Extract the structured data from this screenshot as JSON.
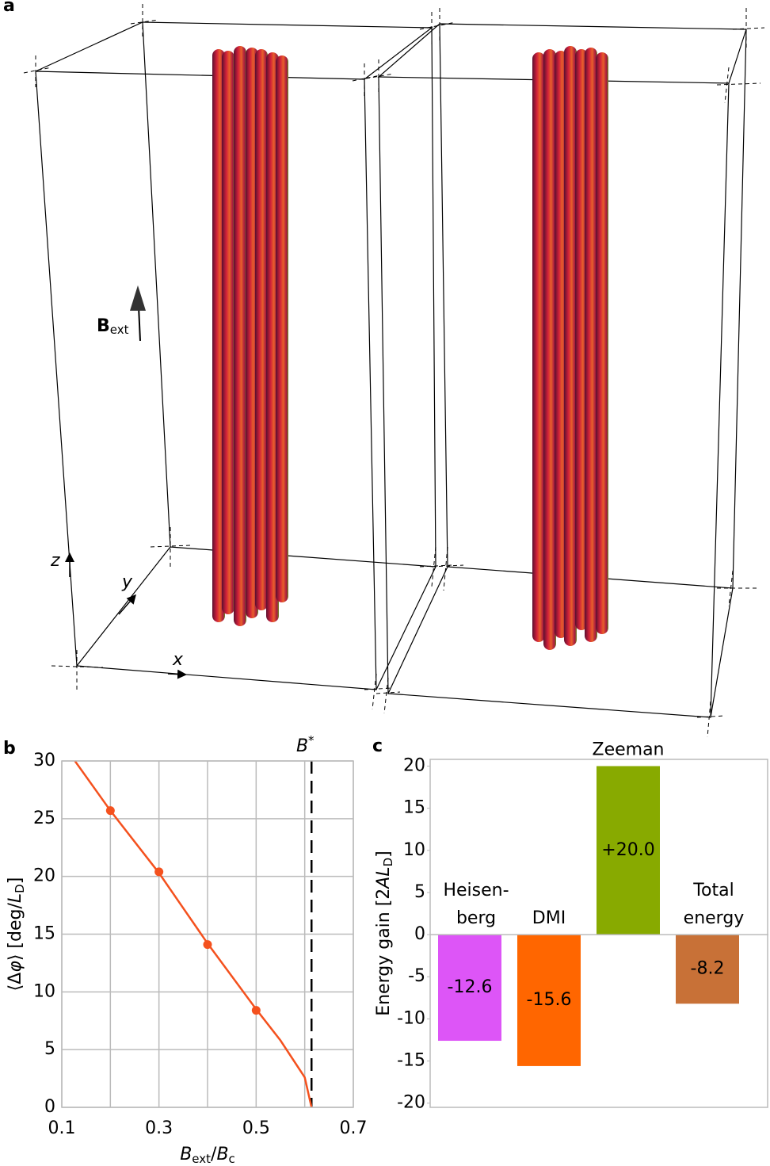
{
  "figure_a": {
    "label": "a",
    "field_label": "B",
    "field_subscript": "ext",
    "axes": [
      "x",
      "y",
      "z"
    ]
  },
  "chart_data": [
    {
      "type": "line",
      "panel_label": "b",
      "xlabel": [
        {
          "text": "B",
          "italic": true
        },
        {
          "text": "ext",
          "sub": true
        },
        {
          "text": "/"
        },
        {
          "text": "B",
          "italic": true
        },
        {
          "text": "c",
          "sub": true
        }
      ],
      "ylabel": [
        {
          "text": "⟨Δ"
        },
        {
          "text": "φ",
          "italic": true
        },
        {
          "text": "⟩ [deg/"
        },
        {
          "text": "L",
          "italic": true
        },
        {
          "text": "D",
          "sub": true
        },
        {
          "text": "]"
        }
      ],
      "xlim": [
        0.1,
        0.7
      ],
      "xticks": [
        0.1,
        0.3,
        0.5,
        0.7
      ],
      "x_minor_grid": [
        0.2,
        0.4,
        0.6
      ],
      "ylim": [
        0,
        30
      ],
      "yticks": [
        0,
        5,
        10,
        15,
        20,
        25,
        30
      ],
      "grid": true,
      "series": [
        {
          "color": "#f4511e",
          "marker": false,
          "x": [
            0.127,
            0.2,
            0.3,
            0.4,
            0.5,
            0.55,
            0.6,
            0.614
          ],
          "values": [
            30,
            25.7,
            20.3,
            14.2,
            8.5,
            5.8,
            2.6,
            0
          ]
        },
        {
          "color": "#f4511e",
          "marker": true,
          "x": [
            0.2,
            0.3,
            0.4,
            0.5
          ],
          "values": [
            25.7,
            20.4,
            14.1,
            8.4
          ]
        }
      ],
      "vline": {
        "x": 0.614,
        "label": "B",
        "sup": "*"
      }
    },
    {
      "type": "bar",
      "panel_label": "c",
      "ylabel": [
        {
          "text": "Energy gain [2"
        },
        {
          "text": "AL",
          "italic": true
        },
        {
          "text": "D",
          "sub": true
        },
        {
          "text": "]"
        }
      ],
      "categories": [
        [
          "Heisen-",
          "berg"
        ],
        [
          "DMI"
        ],
        [
          "Zeeman"
        ],
        [
          "Total",
          "energy"
        ]
      ],
      "values": [
        -12.6,
        -15.6,
        20.0,
        -8.2
      ],
      "value_labels": [
        "-12.6",
        "-15.6",
        "+20.0",
        "-8.2"
      ],
      "colors": [
        "#dd55f7",
        "#ff6600",
        "#88aa00",
        "#c87137"
      ],
      "ylim": [
        -20.5,
        20.8
      ],
      "yticks": [
        -20,
        -15,
        -10,
        -5,
        0,
        5,
        10,
        15,
        20
      ]
    }
  ]
}
